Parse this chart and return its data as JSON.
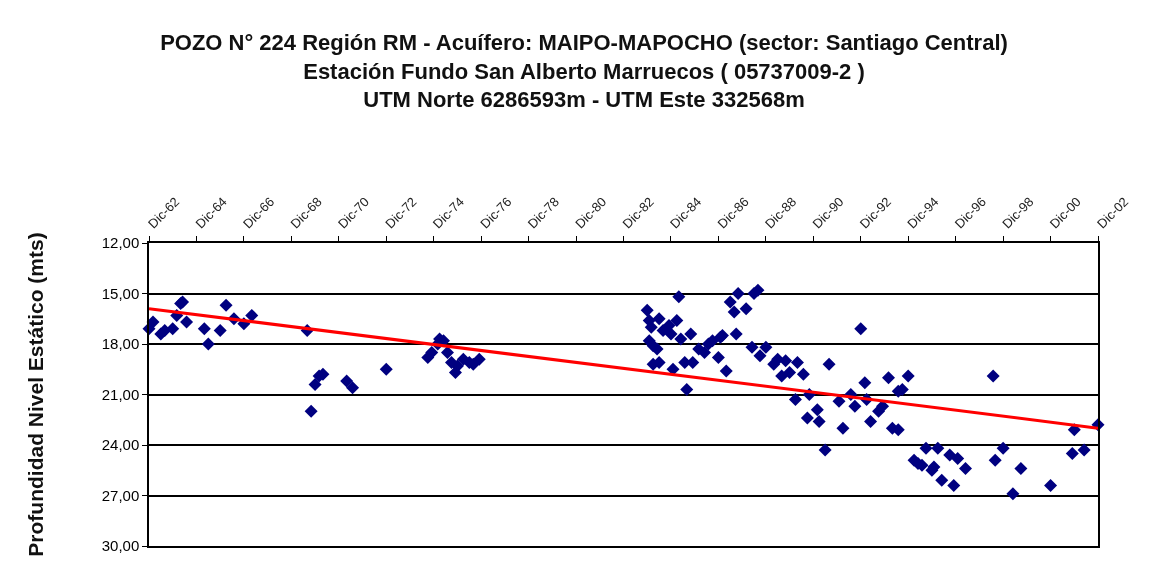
{
  "chart_data": {
    "type": "scatter",
    "title": "POZO N° 224 Región RM - Acuífero: MAIPO-MAPOCHO (sector: Santiago Central)\nEstación Fundo San Alberto Marruecos ( 05737009-2 )\nUTM Norte 6286593m - UTM Este 332568m",
    "ylabel": "Profundidad Nivel Estático (mts)",
    "xlim": [
      "1962-12",
      "2002-12"
    ],
    "xticks": [
      {
        "value": "1962-12",
        "label": "Dic-62"
      },
      {
        "value": "1964-12",
        "label": "Dic-64"
      },
      {
        "value": "1966-12",
        "label": "Dic-66"
      },
      {
        "value": "1968-12",
        "label": "Dic-68"
      },
      {
        "value": "1970-12",
        "label": "Dic-70"
      },
      {
        "value": "1972-12",
        "label": "Dic-72"
      },
      {
        "value": "1974-12",
        "label": "Dic-74"
      },
      {
        "value": "1976-12",
        "label": "Dic-76"
      },
      {
        "value": "1978-12",
        "label": "Dic-78"
      },
      {
        "value": "1980-12",
        "label": "Dic-80"
      },
      {
        "value": "1982-12",
        "label": "Dic-82"
      },
      {
        "value": "1984-12",
        "label": "Dic-84"
      },
      {
        "value": "1986-12",
        "label": "Dic-86"
      },
      {
        "value": "1988-12",
        "label": "Dic-88"
      },
      {
        "value": "1990-12",
        "label": "Dic-90"
      },
      {
        "value": "1992-12",
        "label": "Dic-92"
      },
      {
        "value": "1994-12",
        "label": "Dic-94"
      },
      {
        "value": "1996-12",
        "label": "Dic-96"
      },
      {
        "value": "1998-12",
        "label": "Dic-98"
      },
      {
        "value": "2000-12",
        "label": "Dic-00"
      },
      {
        "value": "2002-12",
        "label": "Dic-02"
      }
    ],
    "ylim": [
      30,
      12
    ],
    "yticks": [
      {
        "value": 12,
        "label": "12,00"
      },
      {
        "value": 15,
        "label": "15,00"
      },
      {
        "value": 18,
        "label": "18,00"
      },
      {
        "value": 21,
        "label": "21,00"
      },
      {
        "value": 24,
        "label": "24,00"
      },
      {
        "value": 27,
        "label": "27,00"
      },
      {
        "value": 30,
        "label": "30,00"
      }
    ],
    "grid": "y",
    "line_style": "solid",
    "series": [
      {
        "color": "#000080",
        "marker": "diamond",
        "x": [
          "1962-12",
          "1963-02",
          "1963-06",
          "1963-08",
          "1963-12",
          "1964-02",
          "1964-04",
          "1964-05",
          "1964-07",
          "1965-04",
          "1965-06",
          "1965-12",
          "1966-03",
          "1966-07",
          "1966-12",
          "1967-04",
          "1969-08",
          "1969-10",
          "1969-12",
          "1970-02",
          "1970-04",
          "1971-04",
          "1971-07",
          "1972-12",
          "1974-09",
          "1974-11",
          "1975-02",
          "1975-03",
          "1975-05",
          "1975-07",
          "1975-09",
          "1975-11",
          "1975-12",
          "1976-03",
          "1976-06",
          "1976-08",
          "1976-11",
          "1983-12",
          "1984-01",
          "1984-02",
          "1984-01",
          "1984-03",
          "1984-05",
          "1984-03",
          "1984-06",
          "1984-06",
          "1984-08",
          "1984-11",
          "1984-12",
          "1985-01",
          "1985-03",
          "1985-04",
          "1985-05",
          "1985-07",
          "1985-08",
          "1985-10",
          "1985-11",
          "1986-02",
          "1986-05",
          "1986-07",
          "1986-09",
          "1986-12",
          "1987-01",
          "1987-02",
          "1987-04",
          "1987-06",
          "1987-08",
          "1987-09",
          "1987-10",
          "1988-02",
          "1988-05",
          "1988-06",
          "1988-08",
          "1988-09",
          "1988-12",
          "1989-04",
          "1989-06",
          "1989-08",
          "1989-10",
          "1989-12",
          "1990-04",
          "1990-03",
          "1990-07",
          "1990-09",
          "1990-10",
          "1991-02",
          "1991-03",
          "1991-06",
          "1991-08",
          "1992-01",
          "1992-03",
          "1992-07",
          "1992-09",
          "1992-12",
          "1993-02",
          "1993-03",
          "1993-05",
          "1993-09",
          "1993-11",
          "1994-02",
          "1994-04",
          "1994-07",
          "1994-07",
          "1994-09",
          "1994-12",
          "1995-03",
          "1995-05",
          "1995-07",
          "1995-09",
          "1995-12",
          "1996-01",
          "1996-03",
          "1996-05",
          "1996-09",
          "1996-11",
          "1997-01",
          "1997-05",
          "1998-07",
          "1998-08",
          "1998-12",
          "1999-05",
          "1999-09",
          "2000-12",
          "2001-11",
          "2001-12",
          "2002-05",
          "2002-12"
        ],
        "values": [
          17.1,
          16.7,
          17.4,
          17.2,
          17.1,
          16.3,
          15.6,
          15.5,
          16.7,
          17.1,
          18.0,
          17.2,
          15.7,
          16.5,
          16.8,
          16.3,
          17.2,
          22.0,
          20.4,
          19.9,
          19.8,
          20.2,
          20.6,
          19.5,
          18.8,
          18.5,
          18.0,
          17.7,
          17.8,
          18.5,
          19.1,
          19.7,
          19.3,
          18.9,
          19.1,
          19.2,
          18.9,
          16.0,
          16.6,
          17.0,
          17.8,
          18.1,
          18.3,
          19.2,
          19.1,
          16.5,
          17.2,
          16.9,
          17.4,
          19.5,
          16.6,
          15.2,
          17.7,
          19.1,
          20.7,
          17.4,
          19.1,
          18.3,
          18.5,
          18.0,
          17.8,
          18.8,
          17.6,
          17.5,
          19.6,
          15.5,
          16.1,
          17.4,
          15.0,
          15.9,
          18.2,
          15.0,
          14.8,
          18.7,
          18.2,
          19.2,
          18.9,
          19.9,
          19.0,
          19.7,
          19.1,
          21.3,
          19.8,
          22.4,
          21.0,
          21.9,
          22.6,
          24.3,
          19.2,
          21.4,
          23.0,
          21.0,
          21.7,
          17.1,
          20.3,
          21.3,
          22.6,
          22.0,
          21.7,
          20.0,
          23.0,
          20.8,
          23.1,
          20.7,
          19.9,
          24.9,
          25.1,
          25.2,
          24.2,
          25.5,
          25.3,
          24.2,
          26.1,
          24.6,
          26.4,
          24.8,
          25.4,
          19.9,
          24.9,
          24.2,
          26.9,
          25.4,
          26.4,
          24.5,
          23.1,
          24.3,
          22.8
        ]
      },
      {
        "type": "line",
        "color": "#ff0000",
        "x": [
          "1962-12",
          "2002-12"
        ],
        "values": [
          15.9,
          23.0
        ]
      }
    ]
  }
}
